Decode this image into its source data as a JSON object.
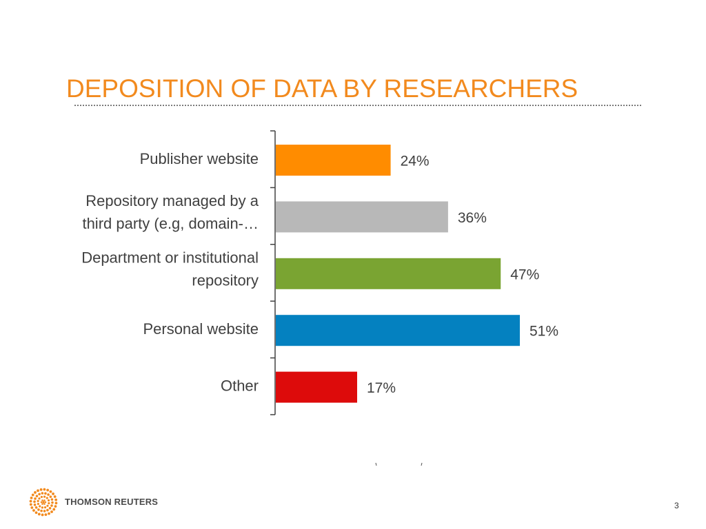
{
  "slide": {
    "title": "DEPOSITION OF DATA BY RESEARCHERS",
    "page_number": "3"
  },
  "footer": {
    "brand": "THOMSON REUTERS",
    "logo_icon": "thomson-reuters-dot-sphere-icon",
    "logo_color": "#f28a1e"
  },
  "colors": {
    "title": "#f28a1e",
    "axis": "#404040"
  },
  "chart_data": {
    "type": "bar",
    "orientation": "horizontal",
    "categories": [
      [
        "Publisher website"
      ],
      [
        "Repository managed by a",
        "third party (e.g, domain-…"
      ],
      [
        "Department or institutional",
        "repository"
      ],
      [
        "Personal website"
      ],
      [
        "Other"
      ]
    ],
    "values": [
      24,
      36,
      47,
      51,
      17
    ],
    "data_labels": [
      "24%",
      "36%",
      "47%",
      "51%",
      "17%"
    ],
    "bar_colors": [
      "#ff8c00",
      "#b8b8b8",
      "#7aa432",
      "#0481c0",
      "#dd0b0b"
    ],
    "unit": "%",
    "xlim": [
      0,
      100
    ],
    "grid": false,
    "legend": "none"
  }
}
